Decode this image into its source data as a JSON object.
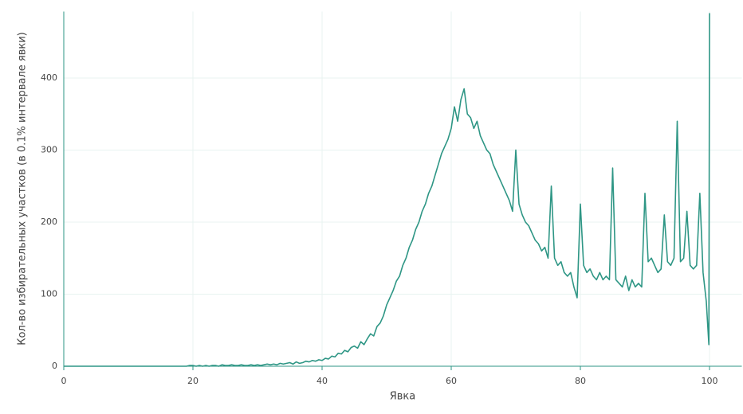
{
  "chart_data": {
    "type": "line",
    "xlabel": "Явка",
    "ylabel": "Кол-во избирательных участков (в 0.1% интервале явки)",
    "color": "#2e9685",
    "grid": true,
    "xlim": [
      0,
      105
    ],
    "ylim": [
      0,
      490
    ],
    "xticks": [
      0,
      20,
      40,
      60,
      80,
      100
    ],
    "yticks": [
      0,
      100,
      200,
      300,
      400
    ],
    "x": [
      0,
      0.5,
      1,
      1.5,
      2,
      2.5,
      3,
      3.5,
      4,
      4.5,
      5,
      5.5,
      6,
      6.5,
      7,
      7.5,
      8,
      8.5,
      9,
      9.5,
      10,
      10.5,
      11,
      11.5,
      12,
      12.5,
      13,
      13.5,
      14,
      14.5,
      15,
      15.5,
      16,
      16.5,
      17,
      17.5,
      18,
      18.5,
      19,
      19.5,
      20,
      20.5,
      21,
      21.5,
      22,
      22.5,
      23,
      23.5,
      24,
      24.5,
      25,
      25.5,
      26,
      26.5,
      27,
      27.5,
      28,
      28.5,
      29,
      29.5,
      30,
      30.5,
      31,
      31.5,
      32,
      32.5,
      33,
      33.5,
      34,
      34.5,
      35,
      35.5,
      36,
      36.5,
      37,
      37.5,
      38,
      38.5,
      39,
      39.5,
      40,
      40.5,
      41,
      41.5,
      42,
      42.5,
      43,
      43.5,
      44,
      44.5,
      45,
      45.5,
      46,
      46.5,
      47,
      47.5,
      48,
      48.5,
      49,
      49.5,
      50,
      50.5,
      51,
      51.5,
      52,
      52.5,
      53,
      53.5,
      54,
      54.5,
      55,
      55.5,
      56,
      56.5,
      57,
      57.5,
      58,
      58.5,
      59,
      59.5,
      60,
      60.5,
      61,
      61.5,
      62,
      62.5,
      63,
      63.5,
      64,
      64.5,
      65,
      65.5,
      66,
      66.5,
      67,
      67.5,
      68,
      68.5,
      69,
      69.5,
      70,
      70.5,
      71,
      71.5,
      72,
      72.5,
      73,
      73.5,
      74,
      74.5,
      75,
      75.5,
      76,
      76.5,
      77,
      77.5,
      78,
      78.5,
      79,
      79.5,
      80,
      80.5,
      81,
      81.5,
      82,
      82.5,
      83,
      83.5,
      84,
      84.5,
      85,
      85.5,
      86,
      86.5,
      87,
      87.5,
      88,
      88.5,
      89,
      89.5,
      90,
      90.5,
      91,
      91.5,
      92,
      92.5,
      93,
      93.5,
      94,
      94.5,
      95,
      95.5,
      96,
      96.5,
      97,
      97.5,
      98,
      98.5,
      99,
      99.5,
      99.9,
      100
    ],
    "values": [
      0,
      0,
      0,
      0,
      0,
      0,
      0,
      0,
      0,
      0,
      0,
      0,
      0,
      0,
      0,
      0,
      0,
      0,
      0,
      0,
      0,
      0,
      0,
      0,
      0,
      0,
      0,
      0,
      0,
      0,
      0,
      0,
      0,
      0,
      0,
      0,
      0,
      0,
      0,
      1,
      1,
      0,
      1,
      0,
      1,
      0,
      1,
      1,
      0,
      2,
      1,
      1,
      2,
      1,
      1,
      2,
      1,
      1,
      2,
      1,
      2,
      1,
      2,
      3,
      2,
      3,
      2,
      4,
      3,
      4,
      5,
      3,
      6,
      4,
      5,
      7,
      6,
      8,
      7,
      9,
      8,
      11,
      10,
      14,
      13,
      18,
      17,
      22,
      20,
      26,
      28,
      25,
      34,
      30,
      38,
      45,
      42,
      55,
      60,
      70,
      85,
      95,
      105,
      118,
      125,
      140,
      150,
      165,
      175,
      190,
      200,
      215,
      225,
      240,
      250,
      265,
      280,
      295,
      305,
      315,
      330,
      360,
      340,
      370,
      385,
      350,
      345,
      330,
      340,
      320,
      310,
      300,
      295,
      280,
      270,
      260,
      250,
      240,
      230,
      215,
      300,
      225,
      210,
      200,
      195,
      185,
      175,
      170,
      160,
      165,
      150,
      250,
      150,
      140,
      145,
      130,
      125,
      130,
      110,
      95,
      225,
      140,
      130,
      135,
      125,
      120,
      130,
      120,
      125,
      120,
      275,
      120,
      115,
      110,
      125,
      105,
      120,
      110,
      115,
      110,
      240,
      145,
      150,
      140,
      130,
      135,
      210,
      145,
      140,
      150,
      340,
      145,
      150,
      215,
      140,
      135,
      140,
      240,
      130,
      90,
      30,
      490
    ]
  }
}
